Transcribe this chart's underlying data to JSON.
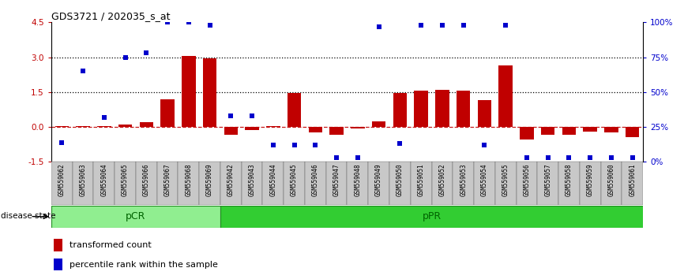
{
  "title": "GDS3721 / 202035_s_at",
  "samples": [
    "GSM559062",
    "GSM559063",
    "GSM559064",
    "GSM559065",
    "GSM559066",
    "GSM559067",
    "GSM559068",
    "GSM559069",
    "GSM559042",
    "GSM559043",
    "GSM559044",
    "GSM559045",
    "GSM559046",
    "GSM559047",
    "GSM559048",
    "GSM559049",
    "GSM559050",
    "GSM559051",
    "GSM559052",
    "GSM559053",
    "GSM559054",
    "GSM559055",
    "GSM559056",
    "GSM559057",
    "GSM559058",
    "GSM559059",
    "GSM559060",
    "GSM559061"
  ],
  "bar_values": [
    0.05,
    0.05,
    0.05,
    0.1,
    0.2,
    1.2,
    3.05,
    2.95,
    -0.35,
    -0.15,
    0.05,
    1.45,
    -0.22,
    -0.32,
    -0.05,
    0.25,
    1.45,
    1.55,
    1.6,
    1.55,
    1.15,
    2.65,
    -0.55,
    -0.35,
    -0.35,
    -0.2,
    -0.25,
    -0.45
  ],
  "dot_pct": [
    14,
    65,
    32,
    75,
    78,
    100,
    100,
    98,
    33,
    33,
    12,
    12,
    12,
    3,
    3,
    97,
    13,
    98,
    98,
    98,
    12,
    98,
    3,
    3,
    3,
    3,
    3,
    3
  ],
  "pCR_count": 8,
  "ylim_left": [
    -1.5,
    4.5
  ],
  "yticks_left": [
    -1.5,
    0.0,
    1.5,
    3.0,
    4.5
  ],
  "yticks_right_pct": [
    0,
    25,
    50,
    75,
    100
  ],
  "bar_color": "#C00000",
  "dot_color": "#0000CC",
  "pCR_color": "#90EE90",
  "pPR_color": "#32CD32",
  "border_color": "#228B22",
  "text_color_group": "#006400",
  "tick_bg_color": "#C8C8C8",
  "legend_bar_label": "transformed count",
  "legend_dot_label": "percentile rank within the sample",
  "disease_state_label": "disease state",
  "pCR_label": "pCR",
  "pPR_label": "pPR"
}
